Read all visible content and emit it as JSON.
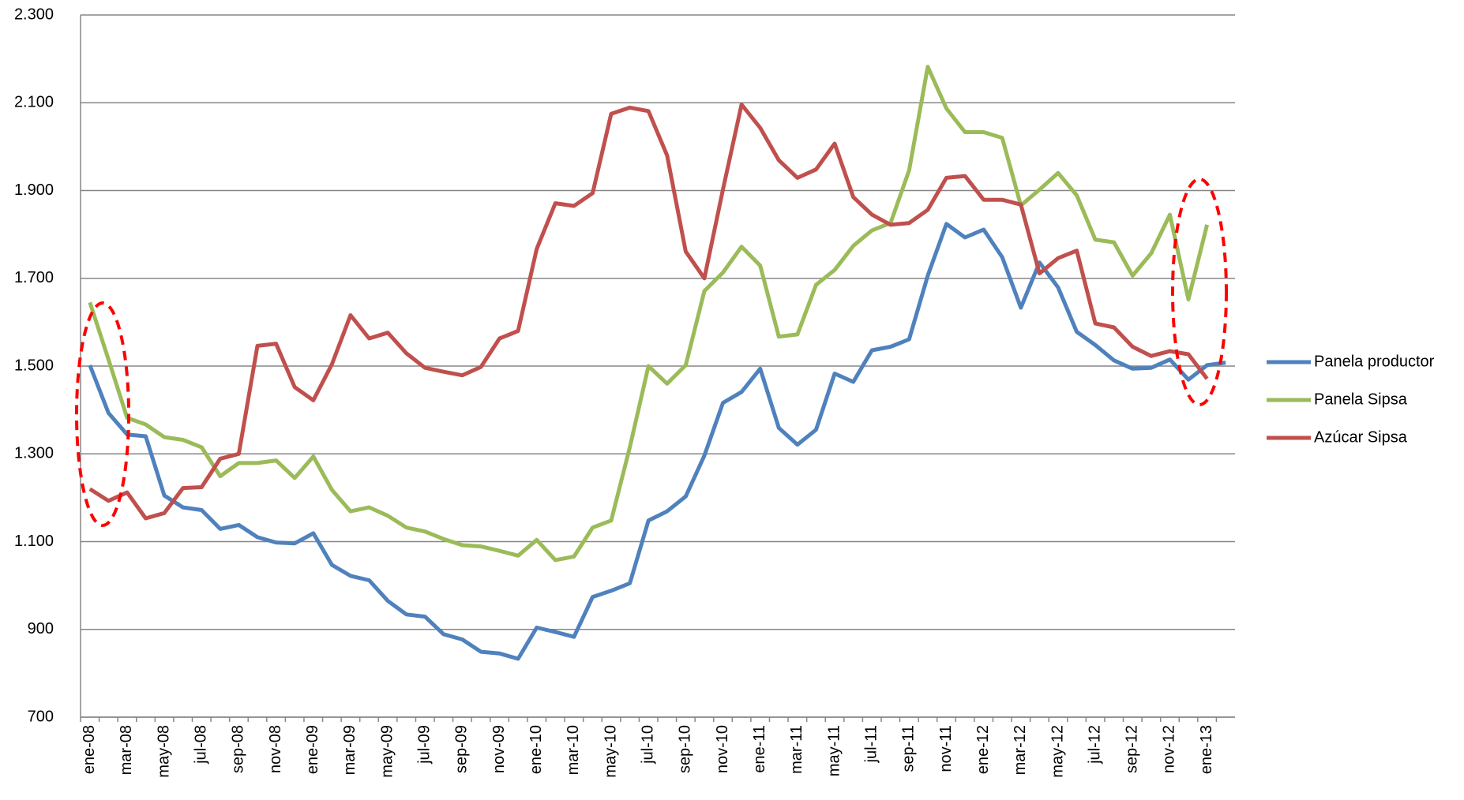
{
  "chart_data": {
    "type": "line",
    "categories": [
      "ene-08",
      null,
      "mar-08",
      null,
      "may-08",
      null,
      "jul-08",
      null,
      "sep-08",
      null,
      "nov-08",
      null,
      "ene-09",
      null,
      "mar-09",
      null,
      "may-09",
      null,
      "jul-09",
      null,
      "sep-09",
      null,
      "nov-09",
      null,
      "ene-10",
      null,
      "mar-10",
      null,
      "may-10",
      null,
      "jul-10",
      null,
      "sep-10",
      null,
      "nov-10",
      null,
      "ene-11",
      null,
      "mar-11",
      null,
      "may-11",
      null,
      "jul-11",
      null,
      "sep-11",
      null,
      "nov-11",
      null,
      "ene-12",
      null,
      "mar-12",
      null,
      "may-12",
      null,
      "jul-12",
      null,
      "sep-12",
      null,
      "nov-12",
      null,
      "ene-13",
      null
    ],
    "series": [
      {
        "name": "Panela productor",
        "color": "#4f81bd",
        "values": [
          1502,
          1393,
          1344,
          1340,
          1205,
          1178,
          1172,
          1129,
          1138,
          1110,
          1098,
          1096,
          1119,
          1047,
          1022,
          1012,
          965,
          934,
          929,
          889,
          877,
          849,
          845,
          833,
          904,
          894,
          883,
          974,
          988,
          1005,
          1148,
          1169,
          1203,
          1296,
          1416,
          1441,
          1494,
          1359,
          1321,
          1355,
          1483,
          1464,
          1536,
          1544,
          1561,
          1706,
          1824,
          1793,
          1811,
          1748,
          1633,
          1736,
          1679,
          1578,
          1548,
          1513,
          1494,
          1496,
          1515,
          1469,
          1502,
          1508
        ]
      },
      {
        "name": "Panela Sipsa",
        "color": "#9bbb59",
        "values": [
          1645,
          1515,
          1382,
          1367,
          1338,
          1332,
          1315,
          1249,
          1279,
          1279,
          1285,
          1245,
          1294,
          1218,
          1169,
          1178,
          1159,
          1132,
          1123,
          1106,
          1092,
          1089,
          1079,
          1068,
          1104,
          1058,
          1066,
          1132,
          1148,
          1315,
          1500,
          1460,
          1502,
          1671,
          1713,
          1772,
          1729,
          1567,
          1572,
          1685,
          1719,
          1774,
          1809,
          1826,
          1946,
          2182,
          2087,
          2033,
          2033,
          2020,
          1866,
          1902,
          1940,
          1889,
          1788,
          1782,
          1706,
          1757,
          1845,
          1652,
          1822,
          null
        ]
      },
      {
        "name": "Azúcar Sipsa",
        "color": "#c0504d",
        "values": [
          1220,
          1193,
          1212,
          1153,
          1165,
          1222,
          1224,
          1289,
          1300,
          1546,
          1551,
          1452,
          1422,
          1504,
          1616,
          1563,
          1576,
          1529,
          1496,
          1487,
          1479,
          1498,
          1563,
          1580,
          1767,
          1871,
          1865,
          1894,
          2075,
          2089,
          2081,
          1980,
          1761,
          1700,
          1902,
          2096,
          2043,
          1969,
          1929,
          1948,
          2007,
          1885,
          1845,
          1822,
          1826,
          1856,
          1929,
          1933,
          1879,
          1879,
          1868,
          1711,
          1746,
          1763,
          1597,
          1588,
          1544,
          1523,
          1534,
          1527,
          1471,
          null
        ]
      }
    ],
    "ylim": [
      700,
      2300
    ],
    "yticks": [
      {
        "value": 700,
        "label": "700"
      },
      {
        "value": 900,
        "label": "900"
      },
      {
        "value": 1100,
        "label": "1.100"
      },
      {
        "value": 1300,
        "label": "1.300"
      },
      {
        "value": 1500,
        "label": "1.500"
      },
      {
        "value": 1700,
        "label": "1.700"
      },
      {
        "value": 1900,
        "label": "1.900"
      },
      {
        "value": 2100,
        "label": "2.100"
      },
      {
        "value": 2300,
        "label": "2.300"
      }
    ],
    "grid": true,
    "legend": "right"
  }
}
